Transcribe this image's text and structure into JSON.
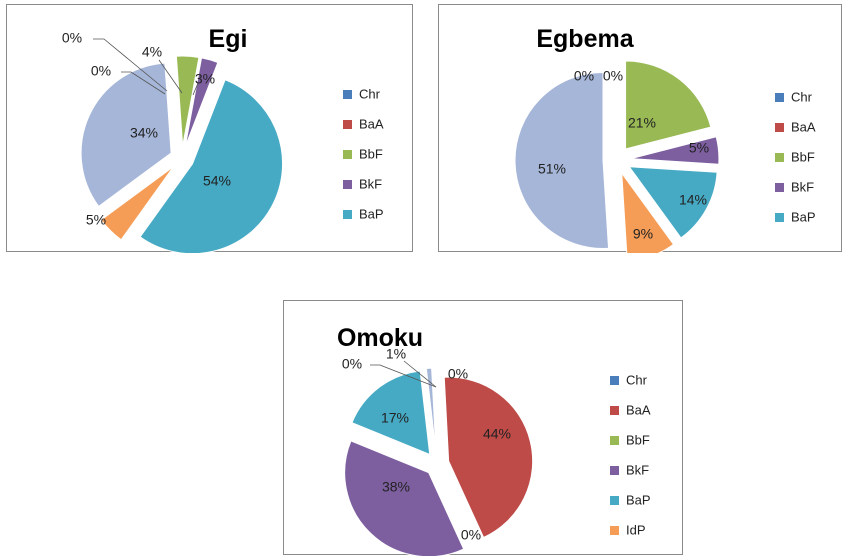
{
  "chart_data": [
    {
      "type": "pie",
      "title": "Egi",
      "legend_position": "right",
      "slices": [
        {
          "label": "Chr",
          "value": 0,
          "value_label": "0%",
          "color": "#4a7ebb"
        },
        {
          "label": "BaA",
          "value": 0,
          "value_label": "0%",
          "color": "#be4b48"
        },
        {
          "label": "BbF",
          "value": 4,
          "value_label": "4%",
          "color": "#98b954"
        },
        {
          "label": "BkF",
          "value": 3,
          "value_label": "3%",
          "color": "#7d5fa0"
        },
        {
          "label": "BaP",
          "value": 54,
          "value_label": "54%",
          "color": "#46aac5"
        },
        {
          "label": "",
          "value": 5,
          "value_label": "5%",
          "color": "#f59d56"
        },
        {
          "label": "",
          "value": 34,
          "value_label": "34%",
          "color": "#a5b6d8"
        }
      ]
    },
    {
      "type": "pie",
      "title": "Egbema",
      "legend_position": "right",
      "slices": [
        {
          "label": "Chr",
          "value": 0,
          "value_label": "0%",
          "color": "#4a7ebb"
        },
        {
          "label": "BaA",
          "value": 0,
          "value_label": "0%",
          "color": "#be4b48"
        },
        {
          "label": "BbF",
          "value": 21,
          "value_label": "21%",
          "color": "#98b954"
        },
        {
          "label": "BkF",
          "value": 5,
          "value_label": "5%",
          "color": "#7d5fa0"
        },
        {
          "label": "BaP",
          "value": 14,
          "value_label": "14%",
          "color": "#46aac5"
        },
        {
          "label": "",
          "value": 9,
          "value_label": "9%",
          "color": "#f59d56"
        },
        {
          "label": "",
          "value": 51,
          "value_label": "51%",
          "color": "#a5b6d8"
        }
      ]
    },
    {
      "type": "pie",
      "title": "Omoku",
      "legend_position": "right",
      "slices": [
        {
          "label": "Chr",
          "value": 0,
          "value_label": "0%",
          "color": "#4a7ebb"
        },
        {
          "label": "BaA",
          "value": 44,
          "value_label": "44%",
          "color": "#be4b48"
        },
        {
          "label": "BbF",
          "value": 0,
          "value_label": "0%",
          "color": "#98b954"
        },
        {
          "label": "BkF",
          "value": 38,
          "value_label": "38%",
          "color": "#7d5fa0"
        },
        {
          "label": "BaP",
          "value": 17,
          "value_label": "17%",
          "color": "#46aac5"
        },
        {
          "label": "IdP",
          "value": 0,
          "value_label": "0%",
          "color": "#f59d56"
        },
        {
          "label": "",
          "value": 1,
          "value_label": "1%",
          "color": "#a5b6d8"
        }
      ]
    }
  ]
}
